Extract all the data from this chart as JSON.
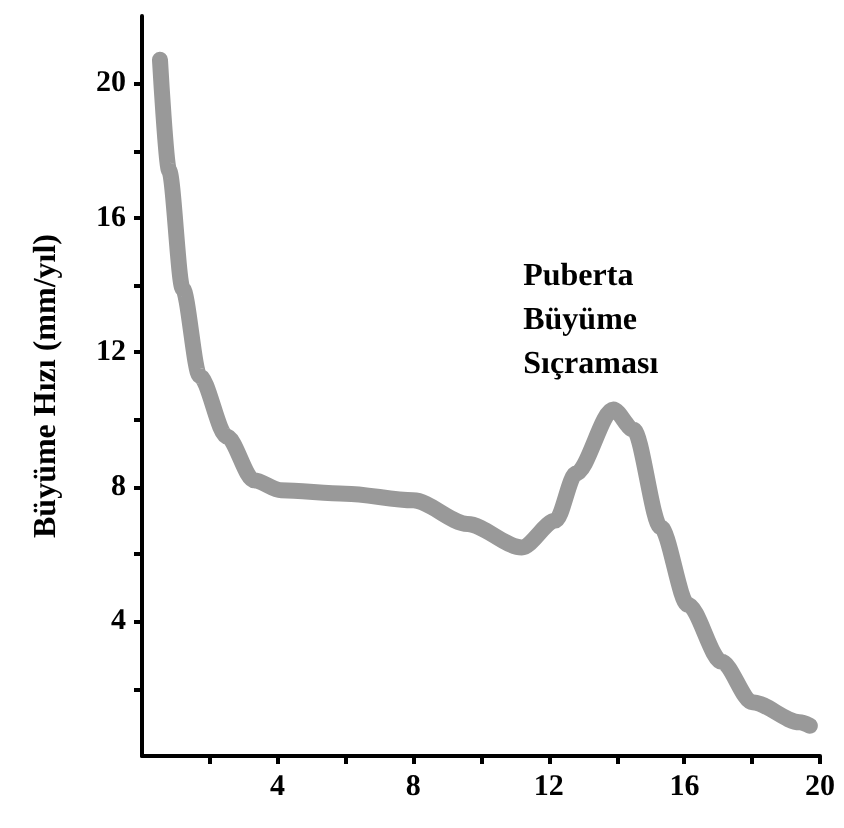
{
  "chart_data": {
    "type": "line",
    "ylabel": "Büyüme Hızı (mm/yıl)",
    "x": [
      0.53,
      0.8,
      1.2,
      1.7,
      2.5,
      3.3,
      4.1,
      6.0,
      8.0,
      9.6,
      11.2,
      12.2,
      12.8,
      13.9,
      14.5,
      15.3,
      16.1,
      17.1,
      18.0,
      19.4,
      19.7
    ],
    "series": [
      {
        "color": "#999999",
        "values": [
          20.7,
          17.4,
          13.9,
          11.3,
          9.5,
          8.2,
          7.9,
          7.8,
          7.6,
          6.9,
          6.2,
          7.0,
          8.4,
          10.3,
          9.7,
          6.8,
          4.5,
          2.8,
          1.6,
          1.0,
          0.9
        ]
      }
    ],
    "xlim": [
      0,
      20
    ],
    "xticks": [
      {
        "value": 2,
        "label": null
      },
      4,
      {
        "value": 6,
        "label": null
      },
      8,
      {
        "value": 10,
        "label": null
      },
      12,
      {
        "value": 14,
        "label": null
      },
      16,
      {
        "value": 18,
        "label": null
      },
      20
    ],
    "ylim": [
      0,
      22
    ],
    "yticks": [
      {
        "value": 2,
        "label": null
      },
      4,
      {
        "value": 6,
        "label": null
      },
      8,
      {
        "value": 10,
        "label": null
      },
      12,
      {
        "value": 14,
        "label": null
      },
      16,
      {
        "value": 18,
        "label": null
      },
      20
    ],
    "annotations": [
      {
        "text": "Puberta\nBüyüme\nSıçraması",
        "x": 13.9,
        "y": 10.3
      }
    ],
    "line_style": "solid"
  }
}
